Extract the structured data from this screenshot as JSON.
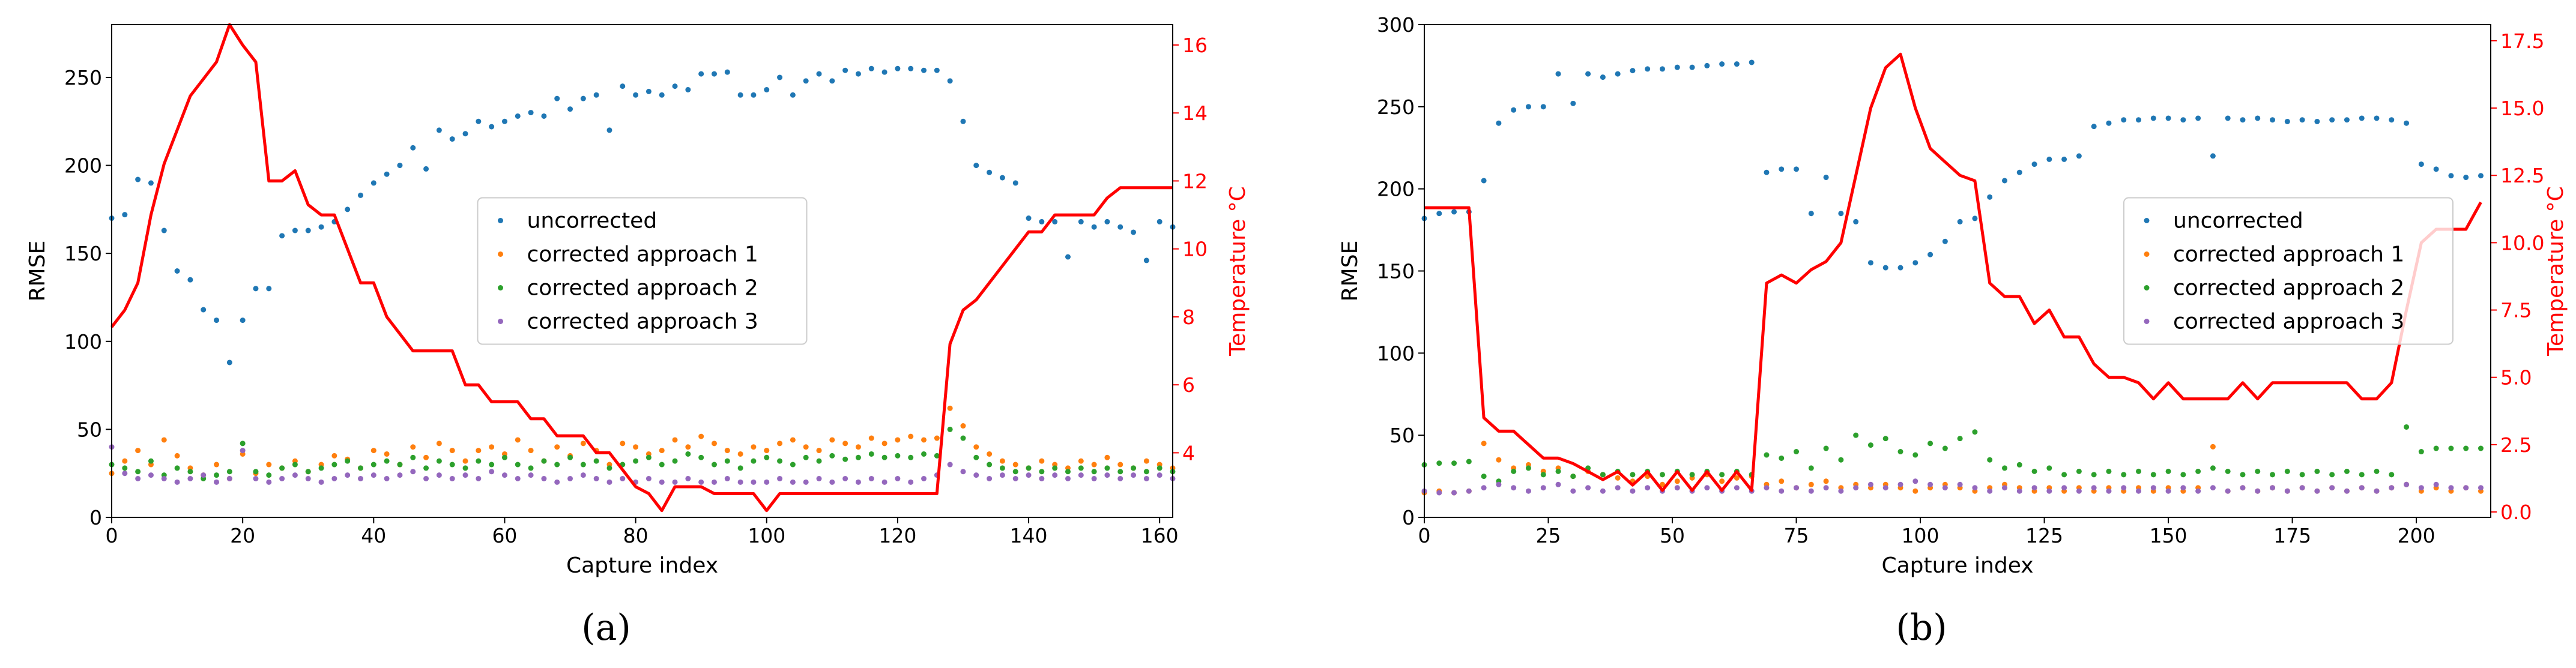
{
  "chart_data": [
    {
      "type": "scatter",
      "label": "(a)",
      "xlabel": "Capture index",
      "ylabel": "RMSE",
      "y2label": "Temperature °C",
      "xlim": [
        0,
        162
      ],
      "ylim": [
        0,
        280
      ],
      "y2lim": [
        2.1,
        16.6
      ],
      "xticks": [
        0,
        20,
        40,
        60,
        80,
        100,
        120,
        140,
        160
      ],
      "yticks": [
        0,
        50,
        100,
        150,
        200,
        250
      ],
      "y2ticks": [
        4,
        6,
        8,
        10,
        12,
        14,
        16
      ],
      "legend": "center",
      "x": [
        0,
        2,
        4,
        6,
        8,
        10,
        12,
        14,
        16,
        18,
        20,
        22,
        24,
        26,
        28,
        30,
        32,
        34,
        36,
        38,
        40,
        42,
        44,
        46,
        48,
        50,
        52,
        54,
        56,
        58,
        60,
        62,
        64,
        66,
        68,
        70,
        72,
        74,
        76,
        78,
        80,
        82,
        84,
        86,
        88,
        90,
        92,
        94,
        96,
        98,
        100,
        102,
        104,
        106,
        108,
        110,
        112,
        114,
        116,
        118,
        120,
        122,
        124,
        126,
        128,
        130,
        132,
        134,
        136,
        138,
        140,
        142,
        144,
        146,
        148,
        150,
        152,
        154,
        156,
        158,
        160,
        162
      ],
      "series": [
        {
          "name": "uncorrected",
          "color": "#1f77b4",
          "values": [
            170,
            172,
            192,
            190,
            163,
            140,
            135,
            118,
            112,
            88,
            112,
            130,
            130,
            160,
            163,
            163,
            165,
            168,
            175,
            183,
            190,
            195,
            200,
            210,
            198,
            220,
            215,
            218,
            225,
            222,
            225,
            228,
            230,
            228,
            238,
            232,
            238,
            240,
            220,
            245,
            240,
            242,
            240,
            245,
            243,
            252,
            252,
            253,
            240,
            240,
            243,
            250,
            240,
            248,
            252,
            248,
            254,
            252,
            255,
            253,
            255,
            255,
            254,
            254,
            248,
            225,
            200,
            196,
            193,
            190,
            170,
            168,
            168,
            148,
            168,
            165,
            168,
            165,
            162,
            146,
            168,
            165
          ]
        },
        {
          "name": "corrected approach 1",
          "color": "#ff7f0e",
          "values": [
            25,
            32,
            38,
            30,
            44,
            35,
            28,
            24,
            30,
            22,
            36,
            25,
            30,
            28,
            32,
            26,
            30,
            35,
            33,
            28,
            38,
            36,
            30,
            40,
            34,
            42,
            38,
            32,
            38,
            40,
            36,
            44,
            38,
            32,
            40,
            35,
            42,
            38,
            30,
            42,
            40,
            36,
            38,
            44,
            40,
            46,
            42,
            38,
            36,
            40,
            38,
            42,
            44,
            40,
            38,
            44,
            42,
            40,
            45,
            42,
            44,
            46,
            44,
            45,
            62,
            52,
            40,
            36,
            32,
            30,
            28,
            32,
            30,
            28,
            32,
            30,
            34,
            30,
            28,
            32,
            30,
            28
          ]
        },
        {
          "name": "corrected approach 2",
          "color": "#2ca02c",
          "values": [
            30,
            28,
            26,
            32,
            24,
            28,
            26,
            22,
            24,
            26,
            42,
            26,
            24,
            28,
            30,
            26,
            28,
            30,
            32,
            28,
            30,
            32,
            30,
            34,
            28,
            32,
            30,
            28,
            32,
            30,
            34,
            30,
            28,
            32,
            30,
            34,
            30,
            32,
            28,
            30,
            32,
            34,
            30,
            32,
            36,
            34,
            30,
            32,
            28,
            32,
            34,
            32,
            30,
            34,
            32,
            35,
            33,
            34,
            36,
            34,
            35,
            34,
            36,
            35,
            50,
            45,
            34,
            30,
            28,
            26,
            28,
            26,
            28,
            26,
            28,
            26,
            28,
            26,
            28,
            26,
            28,
            26
          ]
        },
        {
          "name": "corrected approach 3",
          "color": "#9467bd",
          "values": [
            40,
            25,
            22,
            24,
            22,
            20,
            22,
            24,
            20,
            22,
            38,
            22,
            20,
            22,
            24,
            22,
            20,
            22,
            24,
            22,
            24,
            22,
            24,
            26,
            22,
            24,
            22,
            24,
            22,
            26,
            24,
            22,
            24,
            22,
            20,
            22,
            24,
            22,
            20,
            22,
            20,
            22,
            20,
            20,
            22,
            20,
            20,
            22,
            20,
            20,
            20,
            22,
            20,
            20,
            22,
            20,
            22,
            20,
            22,
            20,
            22,
            20,
            22,
            24,
            30,
            26,
            24,
            22,
            24,
            22,
            24,
            22,
            24,
            22,
            24,
            22,
            24,
            22,
            24,
            22,
            24,
            22
          ]
        },
        {
          "type": "line",
          "axis": "y2",
          "color": "#ff0000",
          "values": [
            7.7,
            8.2,
            9,
            11,
            12.5,
            13.5,
            14.5,
            15,
            15.5,
            16.6,
            16,
            15.5,
            12,
            12,
            12.3,
            11.3,
            11,
            11,
            10,
            9,
            9,
            8,
            7.5,
            7,
            7,
            7,
            7,
            6,
            6,
            5.5,
            5.5,
            5.5,
            5,
            5,
            4.5,
            4.5,
            4.5,
            4,
            4,
            3.5,
            3,
            2.8,
            2.3,
            3,
            3,
            3,
            2.8,
            2.8,
            2.8,
            2.8,
            2.3,
            2.8,
            2.8,
            2.8,
            2.8,
            2.8,
            2.8,
            2.8,
            2.8,
            2.8,
            2.8,
            2.8,
            2.8,
            2.8,
            7.2,
            8.2,
            8.5,
            9,
            9.5,
            10,
            10.5,
            10.5,
            11,
            11,
            11,
            11,
            11.5,
            11.8,
            11.8,
            11.8,
            11.8,
            11.8
          ]
        }
      ]
    },
    {
      "type": "scatter",
      "label": "(b)",
      "xlabel": "Capture index",
      "ylabel": "RMSE",
      "y2label": "Temperature °C",
      "xlim": [
        0,
        215
      ],
      "ylim": [
        0,
        300
      ],
      "y2lim": [
        -0.2,
        18.1
      ],
      "xticks": [
        0,
        25,
        50,
        75,
        100,
        125,
        150,
        175,
        200
      ],
      "yticks": [
        0,
        50,
        100,
        150,
        200,
        250,
        300
      ],
      "y2ticks": [
        {
          "value": 0,
          "label": "0.0"
        },
        2.5,
        {
          "value": 5,
          "label": "5.0"
        },
        7.5,
        {
          "value": 10,
          "label": "10.0"
        },
        12.5,
        {
          "value": 15,
          "label": "15.0"
        },
        17.5
      ],
      "legend": "center right",
      "x": [
        0,
        3,
        6,
        9,
        12,
        15,
        18,
        21,
        24,
        27,
        30,
        33,
        36,
        39,
        42,
        45,
        48,
        51,
        54,
        57,
        60,
        63,
        66,
        69,
        72,
        75,
        78,
        81,
        84,
        87,
        90,
        93,
        96,
        99,
        102,
        105,
        108,
        111,
        114,
        117,
        120,
        123,
        126,
        129,
        132,
        135,
        138,
        141,
        144,
        147,
        150,
        153,
        156,
        159,
        162,
        165,
        168,
        171,
        174,
        177,
        180,
        183,
        186,
        189,
        192,
        195,
        198,
        201,
        204,
        207,
        210,
        213
      ],
      "series": [
        {
          "name": "uncorrected",
          "color": "#1f77b4",
          "values": [
            182,
            185,
            186,
            186,
            205,
            240,
            248,
            250,
            250,
            270,
            252,
            270,
            268,
            270,
            272,
            273,
            273,
            274,
            274,
            275,
            276,
            276,
            277,
            210,
            212,
            212,
            185,
            207,
            185,
            180,
            155,
            152,
            152,
            155,
            160,
            168,
            180,
            182,
            195,
            205,
            210,
            215,
            218,
            218,
            220,
            238,
            240,
            242,
            242,
            243,
            243,
            242,
            243,
            220,
            243,
            242,
            243,
            242,
            241,
            242,
            241,
            242,
            242,
            243,
            243,
            242,
            240,
            215,
            212,
            208,
            207,
            208
          ]
        },
        {
          "name": "corrected approach 1",
          "color": "#ff7f0e",
          "values": [
            15,
            16,
            15,
            16,
            45,
            35,
            30,
            32,
            28,
            30,
            25,
            28,
            26,
            24,
            22,
            25,
            20,
            22,
            24,
            26,
            22,
            24,
            25,
            20,
            22,
            18,
            20,
            22,
            18,
            20,
            18,
            20,
            18,
            16,
            18,
            20,
            18,
            16,
            18,
            20,
            18,
            16,
            18,
            16,
            18,
            16,
            18,
            16,
            18,
            16,
            18,
            16,
            18,
            43,
            16,
            18,
            16,
            18,
            16,
            18,
            16,
            18,
            16,
            18,
            16,
            18,
            20,
            16,
            18,
            16,
            18,
            16
          ]
        },
        {
          "name": "corrected approach 2",
          "color": "#2ca02c",
          "values": [
            32,
            33,
            33,
            34,
            25,
            22,
            28,
            30,
            26,
            28,
            25,
            30,
            26,
            28,
            26,
            28,
            26,
            28,
            26,
            28,
            26,
            28,
            26,
            38,
            36,
            40,
            30,
            42,
            35,
            50,
            44,
            48,
            40,
            38,
            45,
            42,
            48,
            52,
            35,
            30,
            32,
            28,
            30,
            26,
            28,
            26,
            28,
            26,
            28,
            26,
            28,
            26,
            28,
            30,
            28,
            26,
            28,
            26,
            28,
            26,
            28,
            26,
            28,
            26,
            28,
            26,
            55,
            40,
            42,
            42,
            42,
            42
          ]
        },
        {
          "name": "corrected approach 3",
          "color": "#9467bd",
          "values": [
            16,
            15,
            15,
            16,
            18,
            20,
            18,
            16,
            18,
            20,
            16,
            18,
            16,
            18,
            16,
            18,
            16,
            18,
            16,
            18,
            16,
            18,
            16,
            18,
            16,
            18,
            16,
            18,
            16,
            18,
            20,
            18,
            20,
            22,
            20,
            18,
            20,
            18,
            16,
            18,
            16,
            18,
            16,
            18,
            16,
            18,
            16,
            18,
            16,
            18,
            16,
            18,
            16,
            18,
            16,
            18,
            16,
            18,
            16,
            18,
            16,
            18,
            16,
            18,
            16,
            18,
            20,
            18,
            20,
            18,
            18,
            18
          ]
        },
        {
          "type": "line",
          "axis": "y2",
          "color": "#ff0000",
          "values": [
            11.3,
            11.3,
            11.3,
            11.3,
            3.5,
            3.0,
            3.0,
            2.5,
            2.0,
            2.0,
            1.8,
            1.5,
            1.2,
            1.5,
            1.0,
            1.5,
            0.8,
            1.5,
            0.8,
            1.5,
            0.8,
            1.5,
            0.8,
            8.5,
            8.8,
            8.5,
            9.0,
            9.3,
            10.0,
            12.5,
            15.0,
            16.5,
            17.0,
            15.0,
            13.5,
            13.0,
            12.5,
            12.3,
            8.5,
            8.0,
            8.0,
            7.0,
            7.5,
            6.5,
            6.5,
            5.5,
            5.0,
            5.0,
            4.8,
            4.2,
            4.8,
            4.2,
            4.2,
            4.2,
            4.2,
            4.8,
            4.2,
            4.8,
            4.8,
            4.8,
            4.8,
            4.8,
            4.8,
            4.2,
            4.2,
            4.8,
            7.5,
            10.0,
            10.5,
            10.5,
            10.5,
            11.5
          ]
        }
      ]
    }
  ]
}
